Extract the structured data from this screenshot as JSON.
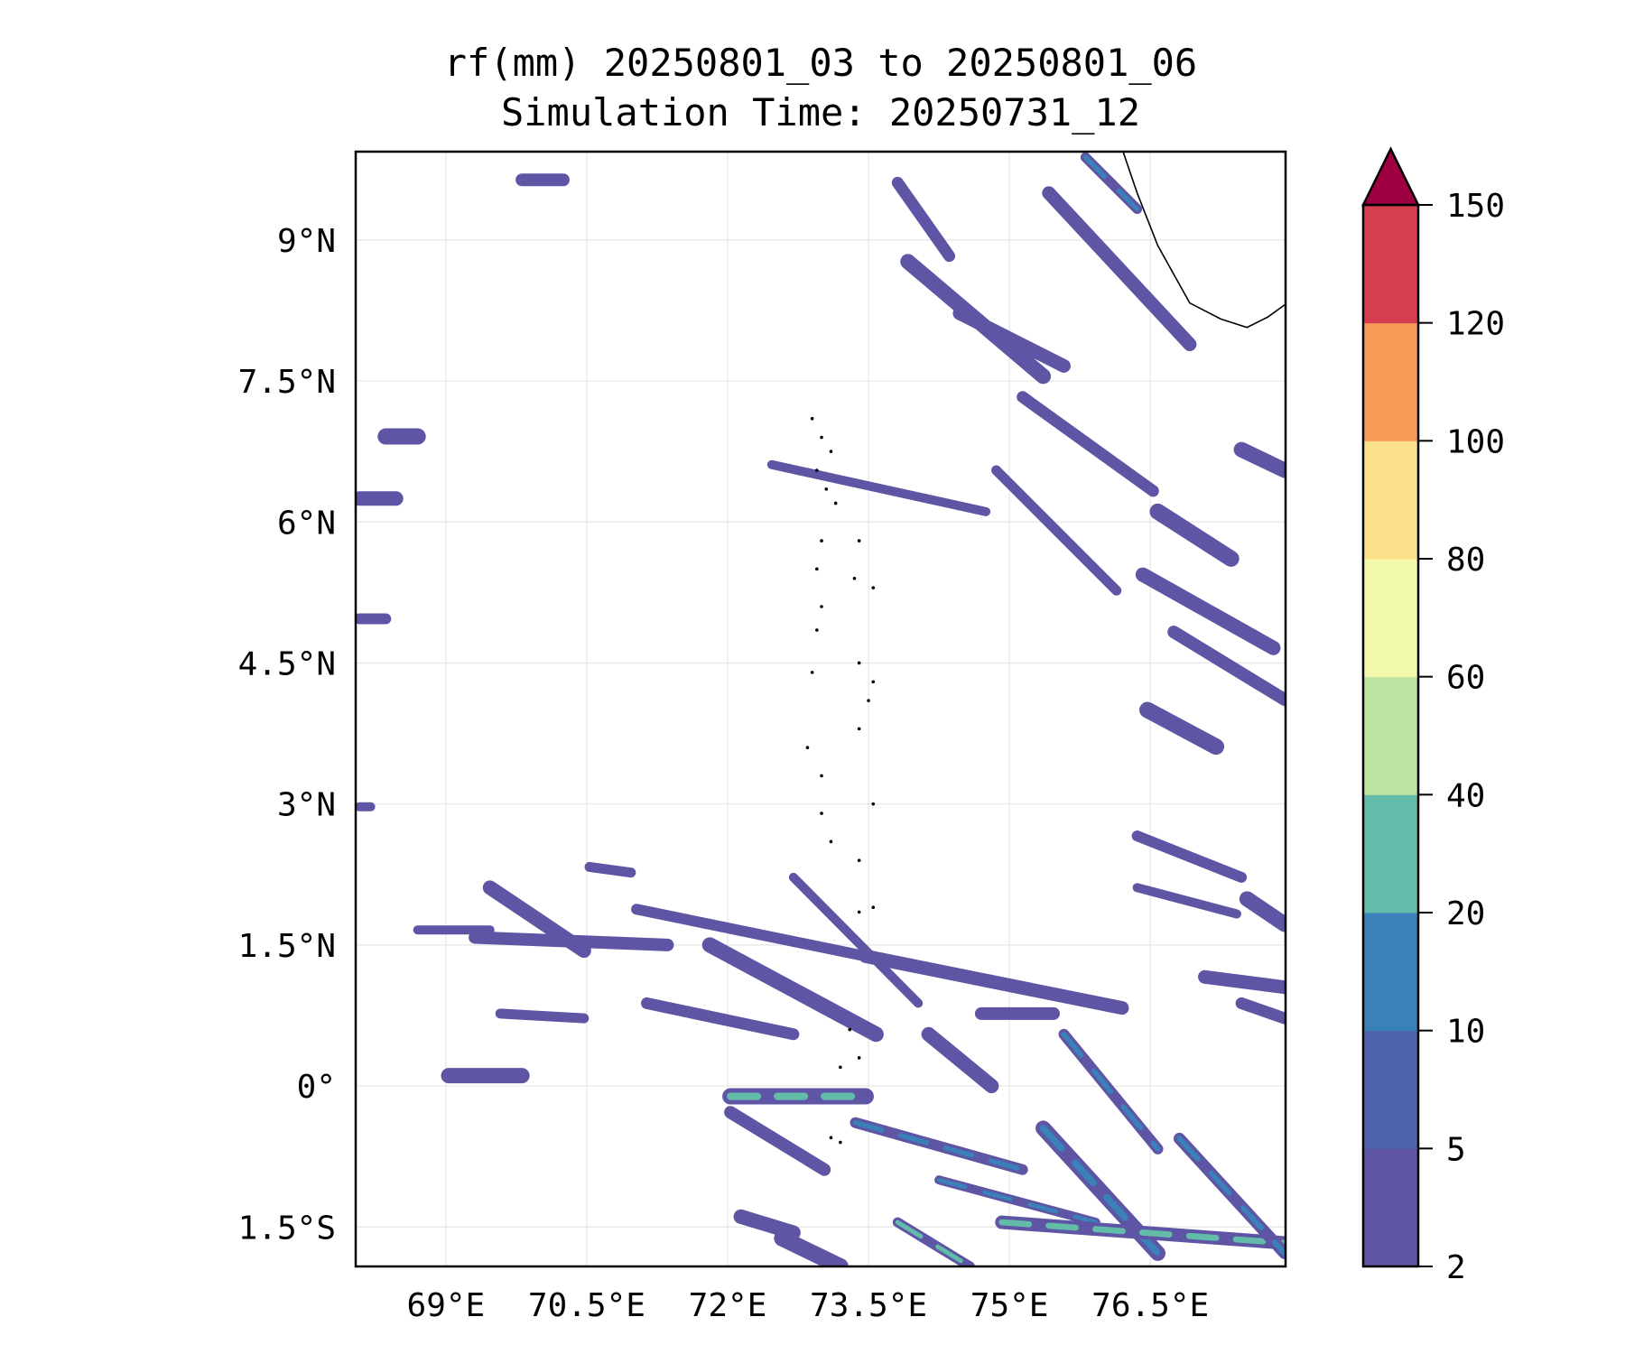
{
  "chart_data": {
    "type": "heatmap",
    "title_line1": "rf(mm) 20250801_03 to 20250801_06",
    "title_line2": "Simulation Time: 20250731_12",
    "xlim": [
      68.04,
      77.94
    ],
    "ylim": [
      -1.92,
      9.94
    ],
    "x_ticks": [
      69,
      70.5,
      72,
      73.5,
      75,
      76.5
    ],
    "x_tick_labels": [
      "69°E",
      "70.5°E",
      "72°E",
      "73.5°E",
      "75°E",
      "76.5°E"
    ],
    "y_ticks": [
      9,
      7.5,
      6,
      4.5,
      3,
      1.5,
      0,
      -1.5
    ],
    "y_tick_labels": [
      "9°N",
      "7.5°N",
      "6°N",
      "4.5°N",
      "3°N",
      "1.5°N",
      "0°",
      "1.5°S"
    ],
    "grid": true,
    "colorbar": {
      "levels": [
        2,
        5,
        10,
        20,
        40,
        60,
        80,
        100,
        120,
        150
      ],
      "labels": [
        "2",
        "5",
        "10",
        "20",
        "40",
        "60",
        "80",
        "100",
        "120",
        "150"
      ],
      "colors": [
        "#5e55a4",
        "#4f62ad",
        "#3a80b9",
        "#63bca9",
        "#bce3a0",
        "#f3faad",
        "#fce08a",
        "#f99c5a",
        "#d53e4f"
      ],
      "extend_max_color": "#9e0142",
      "placement": "right"
    },
    "coastline": [
      [
        76.21,
        9.94
      ],
      [
        76.36,
        9.5
      ],
      [
        76.58,
        8.94
      ],
      [
        76.92,
        8.33
      ],
      [
        77.25,
        8.16
      ],
      [
        77.53,
        8.07
      ],
      [
        77.75,
        8.18
      ],
      [
        77.93,
        8.31
      ]
    ],
    "islands": [
      [
        72.9,
        7.1
      ],
      [
        73.0,
        6.9
      ],
      [
        73.1,
        6.75
      ],
      [
        72.95,
        6.55
      ],
      [
        73.05,
        6.35
      ],
      [
        73.15,
        6.2
      ],
      [
        73.0,
        5.8
      ],
      [
        72.95,
        5.5
      ],
      [
        73.4,
        5.8
      ],
      [
        73.35,
        5.4
      ],
      [
        73.55,
        5.3
      ],
      [
        73.0,
        5.1
      ],
      [
        72.95,
        4.85
      ],
      [
        73.4,
        4.5
      ],
      [
        73.55,
        4.3
      ],
      [
        73.5,
        4.1
      ],
      [
        72.9,
        4.4
      ],
      [
        72.85,
        3.6
      ],
      [
        73.0,
        3.3
      ],
      [
        73.4,
        3.8
      ],
      [
        73.55,
        3.0
      ],
      [
        73.0,
        2.9
      ],
      [
        73.1,
        2.6
      ],
      [
        73.4,
        2.4
      ],
      [
        73.55,
        1.9
      ],
      [
        73.4,
        1.85
      ],
      [
        73.3,
        0.6
      ],
      [
        73.2,
        0.2
      ],
      [
        73.4,
        0.3
      ],
      [
        73.2,
        -0.6
      ],
      [
        73.1,
        -0.55
      ]
    ],
    "rain_streaks": [
      {
        "from": [
          72.47,
          6.61
        ],
        "to": [
          74.75,
          6.11
        ],
        "level": 5
      },
      {
        "from": [
          73.92,
          8.77
        ],
        "to": [
          75.36,
          7.55
        ],
        "level": 5
      },
      {
        "from": [
          74.47,
          8.22
        ],
        "to": [
          75.58,
          7.66
        ],
        "level": 5
      },
      {
        "from": [
          75.14,
          7.33
        ],
        "to": [
          76.53,
          6.33
        ],
        "level": 5
      },
      {
        "from": [
          74.86,
          6.55
        ],
        "to": [
          76.14,
          5.27
        ],
        "level": 5
      },
      {
        "from": [
          76.58,
          6.11
        ],
        "to": [
          77.36,
          5.61
        ],
        "level": 5
      },
      {
        "from": [
          76.42,
          5.44
        ],
        "to": [
          77.81,
          4.66
        ],
        "level": 5
      },
      {
        "from": [
          76.75,
          4.83
        ],
        "to": [
          77.93,
          4.11
        ],
        "level": 5
      },
      {
        "from": [
          76.36,
          2.66
        ],
        "to": [
          77.47,
          2.22
        ],
        "level": 5
      },
      {
        "from": [
          76.36,
          2.11
        ],
        "to": [
          77.42,
          1.83
        ],
        "level": 5
      },
      {
        "from": [
          77.53,
          1.99
        ],
        "to": [
          77.93,
          1.72
        ],
        "level": 5
      },
      {
        "from": [
          75.42,
          9.5
        ],
        "to": [
          76.92,
          7.89
        ],
        "level": 5
      },
      {
        "from": [
          73.81,
          9.61
        ],
        "to": [
          74.36,
          8.83
        ],
        "level": 5
      },
      {
        "from": [
          75.81,
          9.88
        ],
        "to": [
          76.36,
          9.33
        ],
        "level": 10
      },
      {
        "from": [
          76.47,
          4.0
        ],
        "to": [
          77.2,
          3.61
        ],
        "level": 5
      },
      {
        "from": [
          69.47,
          2.11
        ],
        "to": [
          70.47,
          1.44
        ],
        "level": 5
      },
      {
        "from": [
          69.31,
          1.58
        ],
        "to": [
          71.36,
          1.5
        ],
        "level": 5
      },
      {
        "from": [
          71.03,
          1.88
        ],
        "to": [
          73.47,
          1.38
        ],
        "level": 5
      },
      {
        "from": [
          72.7,
          2.22
        ],
        "to": [
          74.03,
          0.88
        ],
        "level": 5
      },
      {
        "from": [
          71.81,
          1.5
        ],
        "to": [
          73.58,
          0.55
        ],
        "level": 5
      },
      {
        "from": [
          73.47,
          1.38
        ],
        "to": [
          76.2,
          0.83
        ],
        "level": 5
      },
      {
        "from": [
          71.14,
          0.88
        ],
        "to": [
          72.7,
          0.55
        ],
        "level": 5
      },
      {
        "from": [
          69.58,
          0.77
        ],
        "to": [
          70.47,
          0.72
        ],
        "level": 5
      },
      {
        "from": [
          72.03,
          -0.11
        ],
        "to": [
          73.47,
          -0.11
        ],
        "level": 20
      },
      {
        "from": [
          74.14,
          0.55
        ],
        "to": [
          74.81,
          0.0
        ],
        "level": 5
      },
      {
        "from": [
          74.7,
          0.77
        ],
        "to": [
          75.47,
          0.77
        ],
        "level": 5
      },
      {
        "from": [
          75.58,
          0.55
        ],
        "to": [
          76.58,
          -0.67
        ],
        "level": 10
      },
      {
        "from": [
          74.25,
          -1.0
        ],
        "to": [
          75.92,
          -1.45
        ],
        "level": 10
      },
      {
        "from": [
          75.36,
          -0.45
        ],
        "to": [
          76.58,
          -1.78
        ],
        "level": 10
      },
      {
        "from": [
          74.92,
          -1.45
        ],
        "to": [
          77.93,
          -1.67
        ],
        "level": 20
      },
      {
        "from": [
          76.81,
          -0.56
        ],
        "to": [
          77.93,
          -1.78
        ],
        "level": 10
      },
      {
        "from": [
          73.81,
          -1.45
        ],
        "to": [
          74.58,
          -1.92
        ],
        "level": 20
      },
      {
        "from": [
          72.58,
          -1.62
        ],
        "to": [
          73.2,
          -1.92
        ],
        "level": 5
      },
      {
        "from": [
          72.14,
          -1.39
        ],
        "to": [
          72.7,
          -1.56
        ],
        "level": 5
      },
      {
        "from": [
          72.03,
          -0.28
        ],
        "to": [
          73.03,
          -0.89
        ],
        "level": 5
      },
      {
        "from": [
          73.36,
          -0.39
        ],
        "to": [
          75.14,
          -0.89
        ],
        "level": 10
      },
      {
        "from": [
          68.7,
          1.66
        ],
        "to": [
          69.47,
          1.66
        ],
        "level": 5
      },
      {
        "from": [
          69.03,
          0.11
        ],
        "to": [
          69.81,
          0.11
        ],
        "level": 5
      },
      {
        "from": [
          77.08,
          1.16
        ],
        "to": [
          77.93,
          1.05
        ],
        "level": 5
      },
      {
        "from": [
          77.47,
          0.88
        ],
        "to": [
          77.93,
          0.72
        ],
        "level": 5
      },
      {
        "from": [
          70.53,
          2.33
        ],
        "to": [
          70.97,
          2.27
        ],
        "level": 5
      },
      {
        "from": [
          68.36,
          6.91
        ],
        "to": [
          68.7,
          6.91
        ],
        "level": 5
      },
      {
        "from": [
          68.08,
          6.25
        ],
        "to": [
          68.47,
          6.25
        ],
        "level": 5
      },
      {
        "from": [
          69.81,
          9.64
        ],
        "to": [
          70.25,
          9.64
        ],
        "level": 5
      },
      {
        "from": [
          68.08,
          4.97
        ],
        "to": [
          68.36,
          4.97
        ],
        "level": 5
      },
      {
        "from": [
          68.08,
          2.97
        ],
        "to": [
          68.2,
          2.97
        ],
        "level": 5
      },
      {
        "from": [
          77.47,
          6.77
        ],
        "to": [
          77.93,
          6.55
        ],
        "level": 5
      }
    ]
  }
}
